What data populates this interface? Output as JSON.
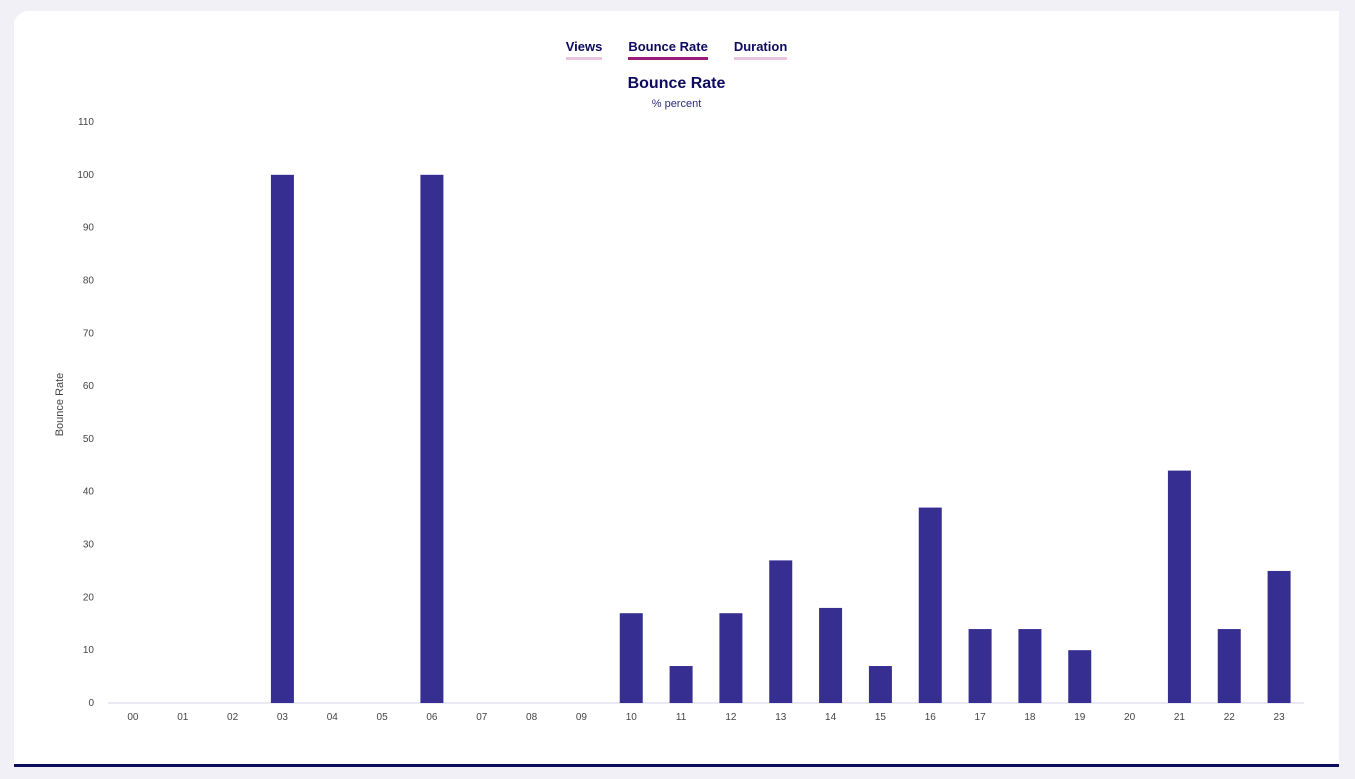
{
  "tabs": [
    {
      "label": "Views",
      "active": false
    },
    {
      "label": "Bounce Rate",
      "active": true
    },
    {
      "label": "Duration",
      "active": false
    }
  ],
  "colors": {
    "bar": "#372e91",
    "axis": "#d6d4ea",
    "active_tab": "#9c1a78",
    "inactive_tab": "#eac3de"
  },
  "chart_data": {
    "type": "bar",
    "title": "Bounce Rate",
    "subtitle": "% percent",
    "ylabel": "Bounce Rate",
    "xlabel": "",
    "ylim": [
      0,
      110
    ],
    "yticks": [
      0,
      10,
      20,
      30,
      40,
      50,
      60,
      70,
      80,
      90,
      100,
      110
    ],
    "grid": false,
    "categories": [
      "00",
      "01",
      "02",
      "03",
      "04",
      "05",
      "06",
      "07",
      "08",
      "09",
      "10",
      "11",
      "12",
      "13",
      "14",
      "15",
      "16",
      "17",
      "18",
      "19",
      "20",
      "21",
      "22",
      "23"
    ],
    "values": [
      0,
      0,
      0,
      100,
      0,
      0,
      100,
      0,
      0,
      0,
      17,
      7,
      17,
      27,
      18,
      7,
      37,
      14,
      14,
      10,
      0,
      44,
      14,
      25
    ]
  }
}
